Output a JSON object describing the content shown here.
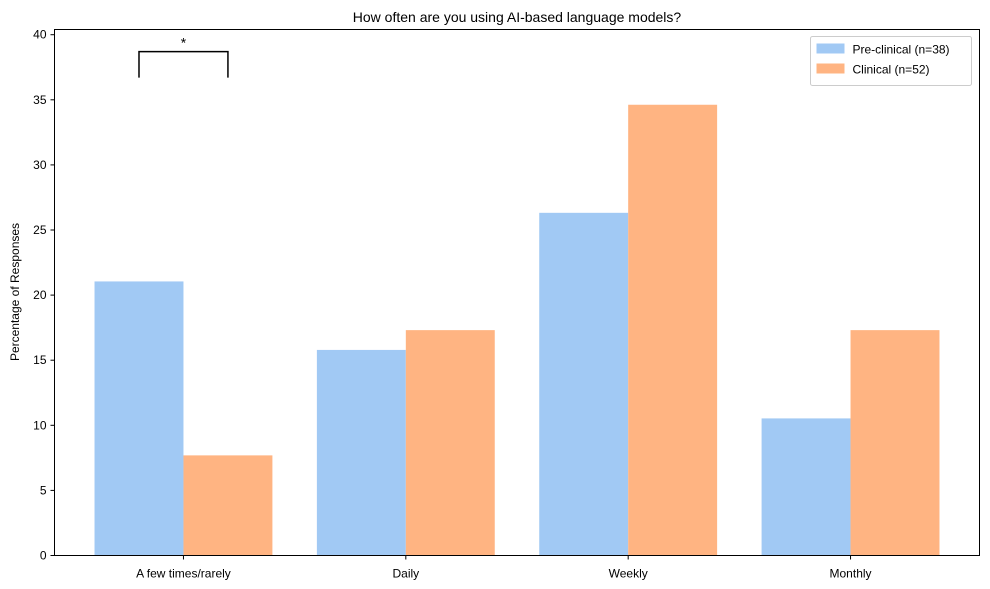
{
  "chart_data": {
    "type": "bar",
    "title": "How often are you using AI-based language models?",
    "xlabel": "",
    "ylabel": "Percentage of Responses",
    "categories": [
      "A few times/rarely",
      "Daily",
      "Weekly",
      "Monthly"
    ],
    "series": [
      {
        "name": "Pre-clinical (n=38)",
        "color": "#a1c9f4",
        "values": [
          21.05,
          15.79,
          26.32,
          10.53
        ]
      },
      {
        "name": "Clinical (n=52)",
        "color": "#ffb482",
        "values": [
          7.69,
          17.31,
          34.62,
          17.31
        ]
      }
    ],
    "ylim": [
      0,
      40.4
    ],
    "yticks": [
      0,
      5,
      10,
      15,
      20,
      25,
      30,
      35,
      40
    ],
    "grid": false,
    "legend": "top-right",
    "annotations": [
      {
        "type": "significance-bracket",
        "label": "*",
        "category": "A few times/rarely",
        "y_bottom": 36.7,
        "y_top": 38.7
      }
    ]
  }
}
